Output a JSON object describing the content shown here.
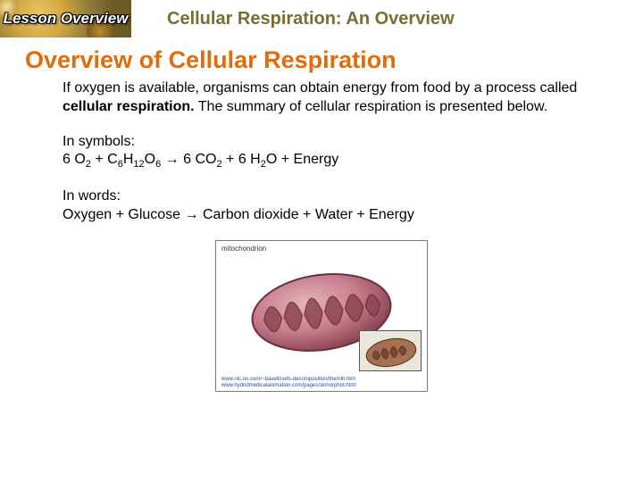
{
  "header": {
    "lesson_label": "Lesson Overview",
    "title": "Cellular Respiration: An Overview"
  },
  "section_title": "Overview of Cellular Respiration",
  "intro_html": "If oxygen is available, organisms can obtain energy from food by a process called <b>cellular respiration.</b> The summary of cellular respiration is presented below.",
  "symbols_label": "In symbols:",
  "symbols_equation_html": "6 O<span class='sub'>2</span> + C<span class='sub'>6</span>H<span class='sub'>12</span>O<span class='sub'>6</span> → 6 CO<span class='sub'>2</span> + 6 H<span class='sub'>2</span>O + Energy",
  "words_label": "In words:",
  "words_equation": "Oxygen + Glucose → Carbon dioxide + Water + Energy",
  "mito": {
    "label": "mitochondrion",
    "credit1": "www.nlc.on.com/~baxell/cells-decomposition/the/nih.htm",
    "credit2": "www.hydridmedicalanimation.com/pages/skinorphot.html",
    "body_fill": "#c97f8f",
    "body_stroke": "#6b2f3d",
    "cristae_fill": "#8d4656",
    "highlight": "#e4b5be",
    "inset_bg": "#eae6da",
    "inset_body": "#a87050",
    "inset_inner": "#7a4a35"
  },
  "colors": {
    "section_title": "#e26b0a",
    "header_title": "#776e33"
  }
}
